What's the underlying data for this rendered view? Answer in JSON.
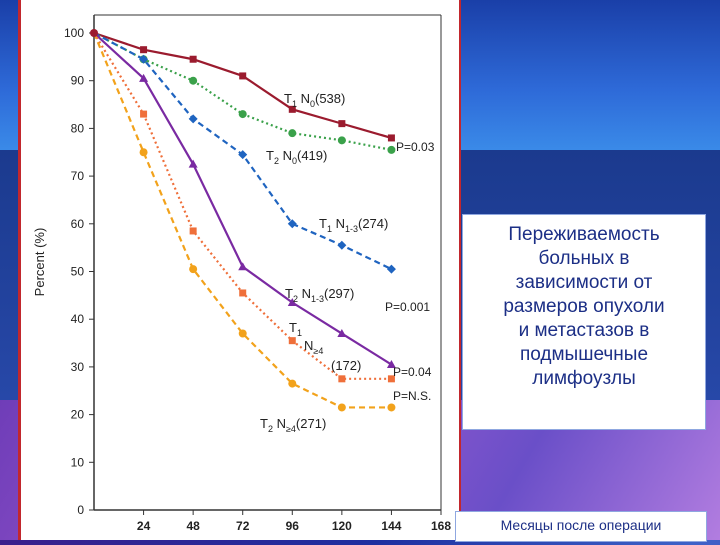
{
  "slide": {
    "caption": "Переживаемость\nбольных в\nзависимости от\nразмеров опухоли\nи метастазов в\nподмышечные\nлимфоузлы",
    "x_axis_caption": "Месяцы после операции"
  },
  "chart_data": {
    "type": "line",
    "ylabel": "Percent (%)",
    "xlabel": "Месяцы после операции",
    "x": [
      0,
      24,
      48,
      72,
      96,
      120,
      144
    ],
    "xticks": [
      24,
      48,
      72,
      96,
      120,
      144,
      168
    ],
    "xlim": [
      0,
      168
    ],
    "yticks": [
      0,
      10,
      20,
      30,
      40,
      50,
      60,
      70,
      80,
      90,
      100
    ],
    "ylim": [
      0,
      100
    ],
    "series": [
      {
        "name": "T1 N0(538)",
        "color": "#9b1b2e",
        "dash": "solid",
        "marker": "square",
        "values": [
          100,
          96.5,
          94.5,
          91,
          84,
          81,
          78
        ]
      },
      {
        "name": "T2 N0(419)",
        "color": "#3aa14a",
        "dash": "dot",
        "marker": "circle",
        "values": [
          100,
          94.5,
          90,
          83,
          79,
          77.5,
          75.5
        ]
      },
      {
        "name": "T1 N1-3(274)",
        "color": "#1f64c0",
        "dash": "dash",
        "marker": "diamond",
        "values": [
          100,
          94.5,
          82,
          74.5,
          60,
          55.5,
          50.5
        ]
      },
      {
        "name": "T2 N1-3(297)",
        "color": "#7a2aa2",
        "dash": "solid",
        "marker": "triangle",
        "values": [
          100,
          90.5,
          72.5,
          51,
          43.5,
          37,
          30.5
        ]
      },
      {
        "name": "T1 N≥4 (172)",
        "color": "#ef6f3a",
        "dash": "dot",
        "marker": "square",
        "values": [
          100,
          83,
          58.5,
          45.5,
          35.5,
          27.5,
          27.5
        ]
      },
      {
        "name": "T2 N≥4(271)",
        "color": "#f2a21b",
        "dash": "dash",
        "marker": "circle",
        "values": [
          100,
          75,
          50.5,
          37,
          26.5,
          21.5,
          21.5
        ]
      }
    ],
    "annotations": {
      "t1n0": {
        "main": "T",
        "sub1": "1",
        "mid": " N",
        "sub2": "0",
        "tail": "(538)"
      },
      "t2n0": {
        "main": "T",
        "sub1": "2",
        "mid": " N",
        "sub2": "0",
        "tail": "(419)"
      },
      "t1n13": {
        "main": "T",
        "sub1": "1",
        "mid": " N",
        "sub2": "1-3",
        "tail": "(274)"
      },
      "t2n13": {
        "main": "T",
        "sub1": "2",
        "mid": " N",
        "sub2": "1-3",
        "tail": "(297)"
      },
      "t1n4_a": {
        "main": "T",
        "sub1": "1"
      },
      "t1n4_b": {
        "main": "N",
        "sub1": "≥4"
      },
      "t1n4_c": "(172)",
      "t2n4": {
        "main": "T",
        "sub1": "2",
        "mid": " N",
        "sub2": "≥4",
        "tail": "(271)"
      },
      "p1": "P=0.03",
      "p2": "P=0.001",
      "p3": "P=0.04",
      "p4": "P=N.S."
    }
  }
}
